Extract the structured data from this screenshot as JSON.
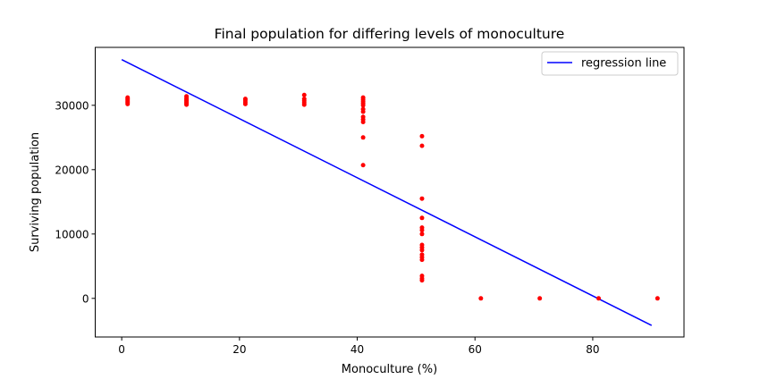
{
  "chart_data": {
    "type": "scatter",
    "title": "Final population for differing levels of monoculture",
    "xlabel": "Monoculture (%)",
    "ylabel": "Surviving population",
    "xlim": [
      -4.5,
      95.5
    ],
    "ylim": [
      -6000,
      39000
    ],
    "xticks": [
      0,
      20,
      40,
      60,
      80
    ],
    "yticks": [
      0,
      10000,
      20000,
      30000
    ],
    "grid": false,
    "legend": {
      "position": "top-right",
      "entries": [
        "regression line"
      ]
    },
    "colors": {
      "points": "#ff0000",
      "line": "#0000ff",
      "axes": "#000000"
    },
    "series": [
      {
        "type": "scatter",
        "color": "#ff0000",
        "points": [
          [
            1,
            30200
          ],
          [
            1,
            30400
          ],
          [
            1,
            30600
          ],
          [
            1,
            30800
          ],
          [
            1,
            31000
          ],
          [
            1,
            31200
          ],
          [
            11,
            30100
          ],
          [
            11,
            30300
          ],
          [
            11,
            30500
          ],
          [
            11,
            30700
          ],
          [
            11,
            30900
          ],
          [
            11,
            31100
          ],
          [
            11,
            31400
          ],
          [
            21,
            30200
          ],
          [
            21,
            30500
          ],
          [
            21,
            30800
          ],
          [
            21,
            31000
          ],
          [
            31,
            30100
          ],
          [
            31,
            30400
          ],
          [
            31,
            30700
          ],
          [
            31,
            31000
          ],
          [
            31,
            31600
          ],
          [
            41,
            20700
          ],
          [
            41,
            25000
          ],
          [
            41,
            27400
          ],
          [
            41,
            27800
          ],
          [
            41,
            28200
          ],
          [
            41,
            29000
          ],
          [
            41,
            29400
          ],
          [
            41,
            30000
          ],
          [
            41,
            30300
          ],
          [
            41,
            30600
          ],
          [
            41,
            30900
          ],
          [
            41,
            31200
          ],
          [
            51,
            2800
          ],
          [
            51,
            3100
          ],
          [
            51,
            3500
          ],
          [
            51,
            6000
          ],
          [
            51,
            6400
          ],
          [
            51,
            6800
          ],
          [
            51,
            7500
          ],
          [
            51,
            7900
          ],
          [
            51,
            8300
          ],
          [
            51,
            10000
          ],
          [
            51,
            10600
          ],
          [
            51,
            11000
          ],
          [
            51,
            12500
          ],
          [
            51,
            15500
          ],
          [
            51,
            23700
          ],
          [
            51,
            25200
          ],
          [
            61,
            0
          ],
          [
            71,
            0
          ],
          [
            81,
            0
          ],
          [
            91,
            0
          ]
        ]
      },
      {
        "type": "line",
        "name": "regression line",
        "color": "#0000ff",
        "points": [
          [
            0,
            37100
          ],
          [
            90,
            -4200
          ]
        ]
      }
    ]
  }
}
